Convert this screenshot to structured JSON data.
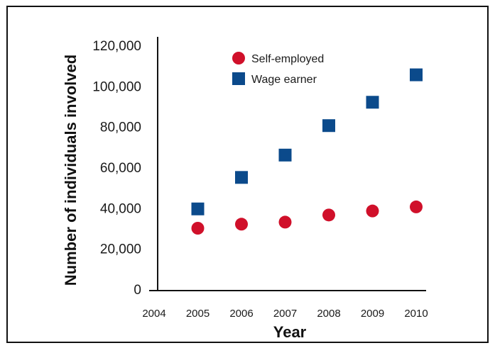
{
  "chart_data": {
    "type": "scatter",
    "title": "",
    "xlabel": "Year",
    "ylabel": "Number of individuals involved",
    "xlim": [
      2004,
      2010
    ],
    "ylim": [
      0,
      120000
    ],
    "x_ticks": [
      "2004",
      "2005",
      "2006",
      "2007",
      "2008",
      "2009",
      "2010"
    ],
    "y_ticks": [
      "0",
      "20,000",
      "40,000",
      "60,000",
      "80,000",
      "100,000",
      "120,000"
    ],
    "grid": false,
    "legend_position": "top-center",
    "series": [
      {
        "name": "Self-employed",
        "marker": "circle",
        "color": "#d0102a",
        "x": [
          2005,
          2006,
          2007,
          2008,
          2009,
          2010
        ],
        "values": [
          30000,
          32000,
          33000,
          36500,
          38500,
          40500
        ]
      },
      {
        "name": "Wage earner",
        "marker": "square",
        "color": "#0b4a8b",
        "x": [
          2005,
          2006,
          2007,
          2008,
          2009,
          2010
        ],
        "values": [
          39500,
          55000,
          66000,
          80500,
          92000,
          105500
        ]
      }
    ]
  }
}
